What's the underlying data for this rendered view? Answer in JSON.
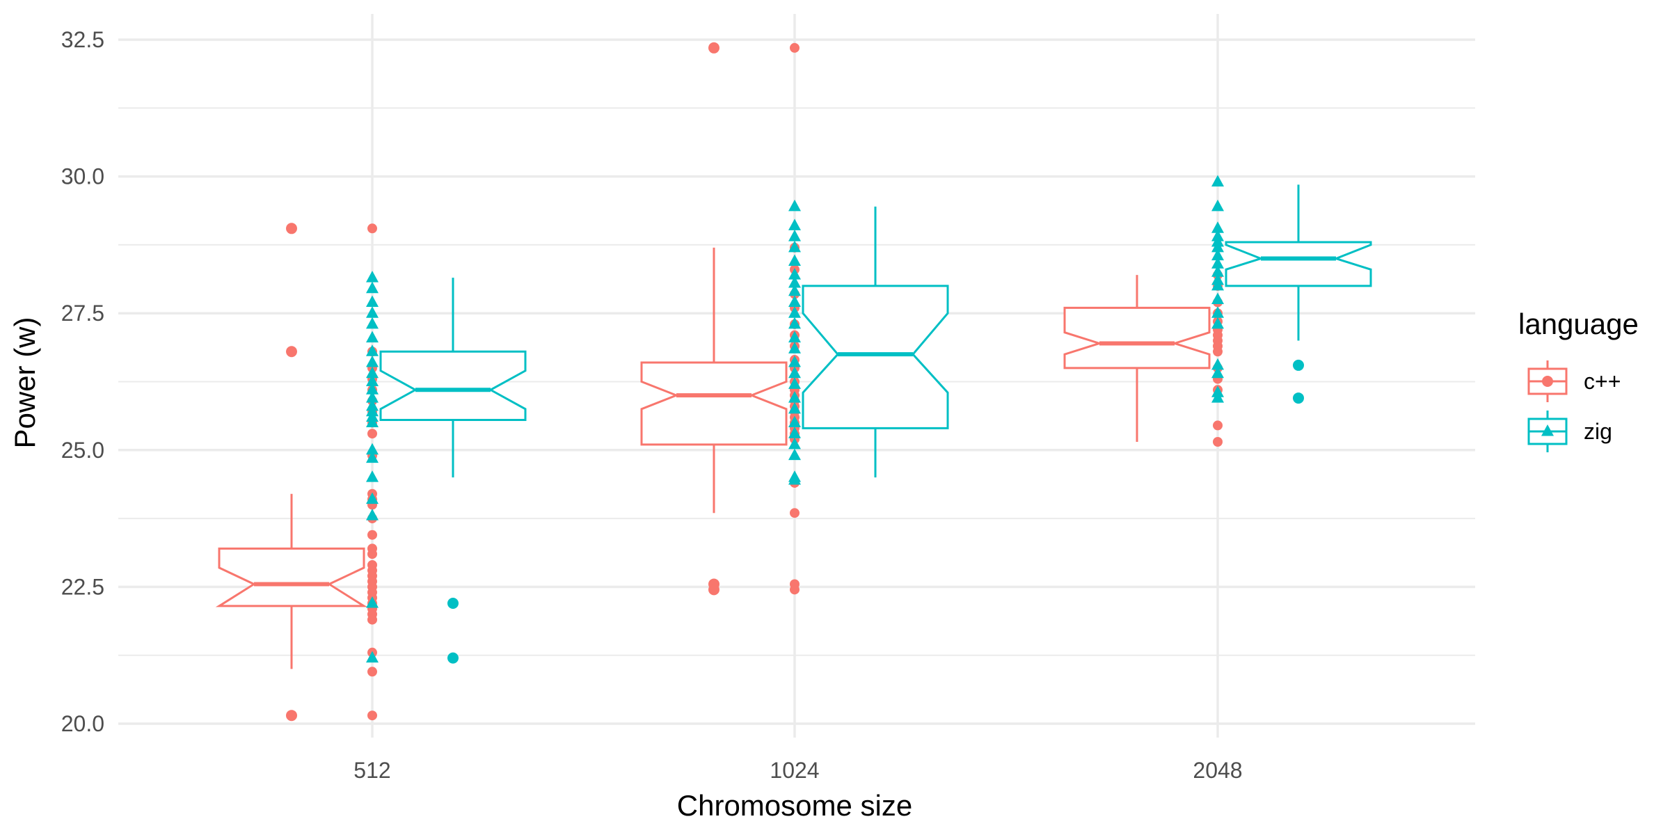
{
  "chart_data": {
    "type": "boxplot",
    "xlabel": "Chromosome size",
    "ylabel": "Power (w)",
    "categories": [
      "512",
      "1024",
      "2048"
    ],
    "ylim": [
      19.8,
      32.8
    ],
    "yticks": [
      20.0,
      22.5,
      25.0,
      27.5,
      30.0,
      32.5
    ],
    "ytick_labels": [
      "20.0",
      "22.5",
      "25.0",
      "27.5",
      "30.0",
      "32.5"
    ],
    "grid": true,
    "legend": {
      "title": "language",
      "position": "right"
    },
    "series": [
      {
        "name": "c++",
        "color": "#F8766D",
        "marker": "circle",
        "boxes": [
          {
            "category": "512",
            "lower_whisker": 21.0,
            "q1": 22.15,
            "median": 22.55,
            "q3": 23.2,
            "upper_whisker": 24.2,
            "notch_low": 22.15,
            "notch_high": 22.85,
            "outliers": [
              29.05,
              26.8,
              20.15
            ]
          },
          {
            "category": "1024",
            "lower_whisker": 23.85,
            "q1": 25.1,
            "median": 26.0,
            "q3": 26.6,
            "upper_whisker": 28.7,
            "notch_low": 25.75,
            "notch_high": 26.25,
            "outliers": [
              32.35,
              22.55,
              22.45
            ]
          },
          {
            "category": "2048",
            "lower_whisker": 25.15,
            "q1": 26.5,
            "median": 26.95,
            "q3": 27.6,
            "upper_whisker": 28.2,
            "notch_low": 26.75,
            "notch_high": 27.15,
            "outliers": []
          }
        ],
        "points": [
          {
            "category": "512",
            "values": [
              29.05,
              26.8,
              26.5,
              26.3,
              26.1,
              25.9,
              25.7,
              25.5,
              25.3,
              24.9,
              24.2,
              24.1,
              24.0,
              23.75,
              23.45,
              23.2,
              23.1,
              22.9,
              22.8,
              22.7,
              22.6,
              22.5,
              22.4,
              22.3,
              22.2,
              22.1,
              22.0,
              21.9,
              21.3,
              20.95,
              20.15
            ]
          },
          {
            "category": "1024",
            "values": [
              32.35,
              28.7,
              28.3,
              27.85,
              27.6,
              27.3,
              27.1,
              26.9,
              26.65,
              26.5,
              26.25,
              26.1,
              26.0,
              25.9,
              25.8,
              25.7,
              25.6,
              25.5,
              25.4,
              25.3,
              25.2,
              24.4,
              23.85,
              22.55,
              22.45
            ]
          },
          {
            "category": "2048",
            "values": [
              28.2,
              28.0,
              27.7,
              27.5,
              27.35,
              27.2,
              27.1,
              27.0,
              26.9,
              26.8,
              26.5,
              26.3,
              26.1,
              25.45,
              25.15
            ]
          }
        ]
      },
      {
        "name": "zig",
        "color": "#00BFC4",
        "marker": "triangle",
        "boxes": [
          {
            "category": "512",
            "lower_whisker": 24.5,
            "q1": 25.55,
            "median": 26.1,
            "q3": 26.8,
            "upper_whisker": 28.15,
            "notch_low": 25.75,
            "notch_high": 26.45,
            "outliers": [
              22.2,
              21.2
            ]
          },
          {
            "category": "1024",
            "lower_whisker": 24.5,
            "q1": 25.4,
            "median": 26.75,
            "q3": 28.0,
            "upper_whisker": 29.45,
            "notch_low": 26.05,
            "notch_high": 27.5,
            "outliers": []
          },
          {
            "category": "2048",
            "lower_whisker": 27.0,
            "q1": 28.0,
            "median": 28.5,
            "q3": 28.8,
            "upper_whisker": 29.85,
            "notch_low": 28.3,
            "notch_high": 28.75,
            "outliers": [
              26.55,
              25.95
            ]
          }
        ],
        "points": [
          {
            "category": "512",
            "values": [
              28.15,
              27.95,
              27.7,
              27.5,
              27.3,
              27.05,
              26.8,
              26.6,
              26.4,
              26.25,
              26.1,
              25.95,
              25.8,
              25.7,
              25.6,
              25.5,
              25.0,
              24.85,
              24.5,
              24.1,
              23.8,
              22.2,
              21.2
            ]
          },
          {
            "category": "1024",
            "values": [
              29.45,
              29.1,
              28.9,
              28.7,
              28.45,
              28.2,
              28.05,
              27.9,
              27.7,
              27.5,
              27.3,
              27.05,
              26.85,
              26.6,
              26.4,
              26.2,
              25.95,
              25.75,
              25.5,
              25.3,
              25.1,
              24.9,
              24.5,
              24.45
            ]
          },
          {
            "category": "2048",
            "values": [
              29.9,
              29.45,
              29.05,
              28.9,
              28.8,
              28.7,
              28.55,
              28.4,
              28.25,
              28.1,
              28.0,
              27.75,
              27.5,
              27.3,
              26.55,
              26.4,
              26.05,
              25.95
            ]
          }
        ]
      }
    ]
  }
}
